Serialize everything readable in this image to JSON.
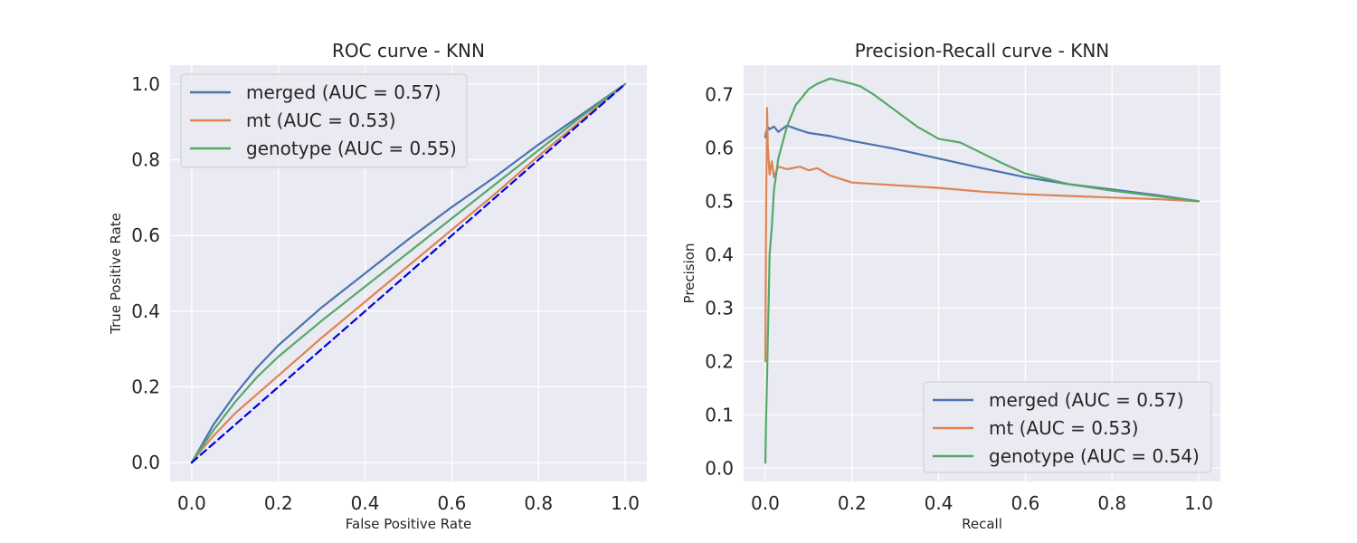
{
  "chart_data": [
    {
      "type": "line",
      "title": "ROC curve - KNN",
      "xlabel": "False Positive Rate",
      "ylabel": "True Positive Rate",
      "xlim": [
        -0.05,
        1.05
      ],
      "ylim": [
        -0.05,
        1.05
      ],
      "xticks": [
        0.0,
        0.2,
        0.4,
        0.6,
        0.8,
        1.0
      ],
      "yticks": [
        0.0,
        0.2,
        0.4,
        0.6,
        0.8,
        1.0
      ],
      "tick_labels": [
        "0.0",
        "0.2",
        "0.4",
        "0.6",
        "0.8",
        "1.0"
      ],
      "grid": true,
      "legend": "upper-left",
      "series": [
        {
          "name": "merged (AUC = 0.57)",
          "color": "#4c72b0",
          "x": [
            0,
            0.02,
            0.05,
            0.1,
            0.15,
            0.2,
            0.3,
            0.4,
            0.5,
            0.6,
            0.7,
            0.8,
            0.9,
            1.0
          ],
          "y": [
            0,
            0.04,
            0.1,
            0.18,
            0.25,
            0.31,
            0.41,
            0.5,
            0.59,
            0.675,
            0.755,
            0.84,
            0.92,
            1.0
          ]
        },
        {
          "name": "mt (AUC = 0.53)",
          "color": "#dd8452",
          "x": [
            0,
            0.02,
            0.05,
            0.1,
            0.15,
            0.2,
            0.3,
            0.4,
            0.5,
            0.6,
            0.7,
            0.8,
            0.9,
            1.0
          ],
          "y": [
            0,
            0.03,
            0.07,
            0.13,
            0.18,
            0.23,
            0.33,
            0.425,
            0.52,
            0.615,
            0.71,
            0.81,
            0.905,
            1.0
          ]
        },
        {
          "name": "genotype (AUC = 0.55)",
          "color": "#55a868",
          "x": [
            0,
            0.02,
            0.05,
            0.1,
            0.15,
            0.2,
            0.3,
            0.4,
            0.5,
            0.6,
            0.7,
            0.8,
            0.9,
            1.0
          ],
          "y": [
            0,
            0.035,
            0.085,
            0.16,
            0.225,
            0.28,
            0.375,
            0.465,
            0.555,
            0.645,
            0.735,
            0.825,
            0.915,
            1.0
          ]
        },
        {
          "name": "",
          "color": "#0000dd",
          "dashed": true,
          "x": [
            0,
            1
          ],
          "y": [
            0,
            1
          ]
        }
      ]
    },
    {
      "type": "line",
      "title": "Precision-Recall curve - KNN",
      "xlabel": "Recall",
      "ylabel": "Precision",
      "xlim": [
        -0.05,
        1.05
      ],
      "ylim": [
        -0.025,
        0.755
      ],
      "xticks": [
        0.0,
        0.2,
        0.4,
        0.6,
        0.8,
        1.0
      ],
      "yticks": [
        0.0,
        0.1,
        0.2,
        0.3,
        0.4,
        0.5,
        0.6,
        0.7
      ],
      "xtick_labels": [
        "0.0",
        "0.2",
        "0.4",
        "0.6",
        "0.8",
        "1.0"
      ],
      "ytick_labels": [
        "0.0",
        "0.1",
        "0.2",
        "0.3",
        "0.4",
        "0.5",
        "0.6",
        "0.7"
      ],
      "grid": true,
      "legend": "lower-right",
      "series": [
        {
          "name": "merged (AUC = 0.57)",
          "color": "#4c72b0",
          "x": [
            0.0,
            0.002,
            0.005,
            0.01,
            0.02,
            0.03,
            0.05,
            0.07,
            0.1,
            0.15,
            0.2,
            0.3,
            0.4,
            0.5,
            0.6,
            0.7,
            0.8,
            0.9,
            1.0
          ],
          "y": [
            0.62,
            0.63,
            0.64,
            0.635,
            0.64,
            0.63,
            0.642,
            0.636,
            0.628,
            0.622,
            0.613,
            0.598,
            0.58,
            0.562,
            0.545,
            0.532,
            0.522,
            0.512,
            0.5
          ]
        },
        {
          "name": "mt (AUC = 0.53)",
          "color": "#dd8452",
          "x": [
            0.0,
            0.002,
            0.004,
            0.006,
            0.01,
            0.015,
            0.02,
            0.03,
            0.05,
            0.08,
            0.1,
            0.12,
            0.15,
            0.2,
            0.3,
            0.4,
            0.5,
            0.6,
            0.7,
            0.8,
            0.9,
            1.0
          ],
          "y": [
            0.2,
            0.5,
            0.675,
            0.6,
            0.55,
            0.575,
            0.545,
            0.565,
            0.56,
            0.565,
            0.558,
            0.562,
            0.548,
            0.535,
            0.53,
            0.525,
            0.518,
            0.513,
            0.51,
            0.507,
            0.504,
            0.5
          ]
        },
        {
          "name": "genotype (AUC = 0.54)",
          "color": "#55a868",
          "x": [
            0.0,
            0.002,
            0.004,
            0.006,
            0.008,
            0.01,
            0.015,
            0.02,
            0.03,
            0.05,
            0.07,
            0.1,
            0.12,
            0.15,
            0.2,
            0.22,
            0.25,
            0.3,
            0.35,
            0.4,
            0.45,
            0.5,
            0.55,
            0.6,
            0.7,
            0.8,
            0.9,
            1.0
          ],
          "y": [
            0.01,
            0.1,
            0.17,
            0.25,
            0.32,
            0.4,
            0.45,
            0.52,
            0.58,
            0.64,
            0.68,
            0.71,
            0.72,
            0.73,
            0.72,
            0.715,
            0.7,
            0.67,
            0.64,
            0.617,
            0.61,
            0.59,
            0.57,
            0.552,
            0.532,
            0.52,
            0.51,
            0.5
          ]
        }
      ]
    }
  ]
}
